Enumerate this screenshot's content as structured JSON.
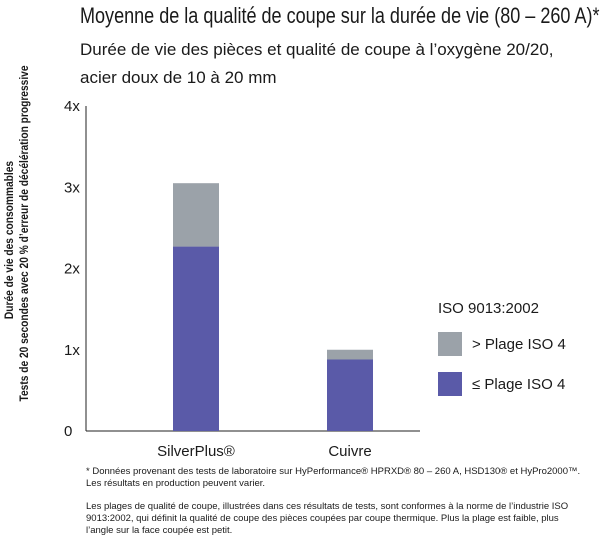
{
  "chart_data": {
    "type": "bar",
    "stacked": true,
    "title": "Moyenne de la qualité de coupe sur la durée de vie (80 – 260 A)*",
    "subtitle": "Durée de vie des pièces et qualité de coupe à l’oxygène 20/20, acier doux de 10 à 20 mm",
    "ylabel_line1": "Durée de vie des consommables",
    "ylabel_line2": "Tests de 20 secondes avec 20 % d’erreur de décélération progressive",
    "categories": [
      "SilverPlus®",
      "Cuivre"
    ],
    "yticks": [
      "0",
      "1x",
      "2x",
      "3x",
      "4x"
    ],
    "ylim": [
      0,
      4
    ],
    "legend_title": "ISO 9013:2002",
    "legend_position": "right",
    "series": [
      {
        "name": "≤ Plage ISO 4",
        "color": "#5a5aa8",
        "values": [
          2.27,
          0.88
        ]
      },
      {
        "name": "> Plage ISO 4",
        "color": "#9ba2a9",
        "values": [
          0.78,
          0.12
        ]
      }
    ]
  },
  "footnotes": {
    "note1": "* Données provenant des tests de laboratoire sur HyPerformance® HPRXD® 80 – 260 A, HSD130® et HyPro2000™. Les résultats en production peuvent varier.",
    "note2": "Les plages de qualité de coupe, illustrées dans ces résultats de tests, sont conformes à la norme de l’industrie ISO 9013:2002, qui définit la qualité de coupe des pièces coupées par coupe thermique. Plus la plage est faible, plus l’angle sur la face coupée est petit."
  }
}
